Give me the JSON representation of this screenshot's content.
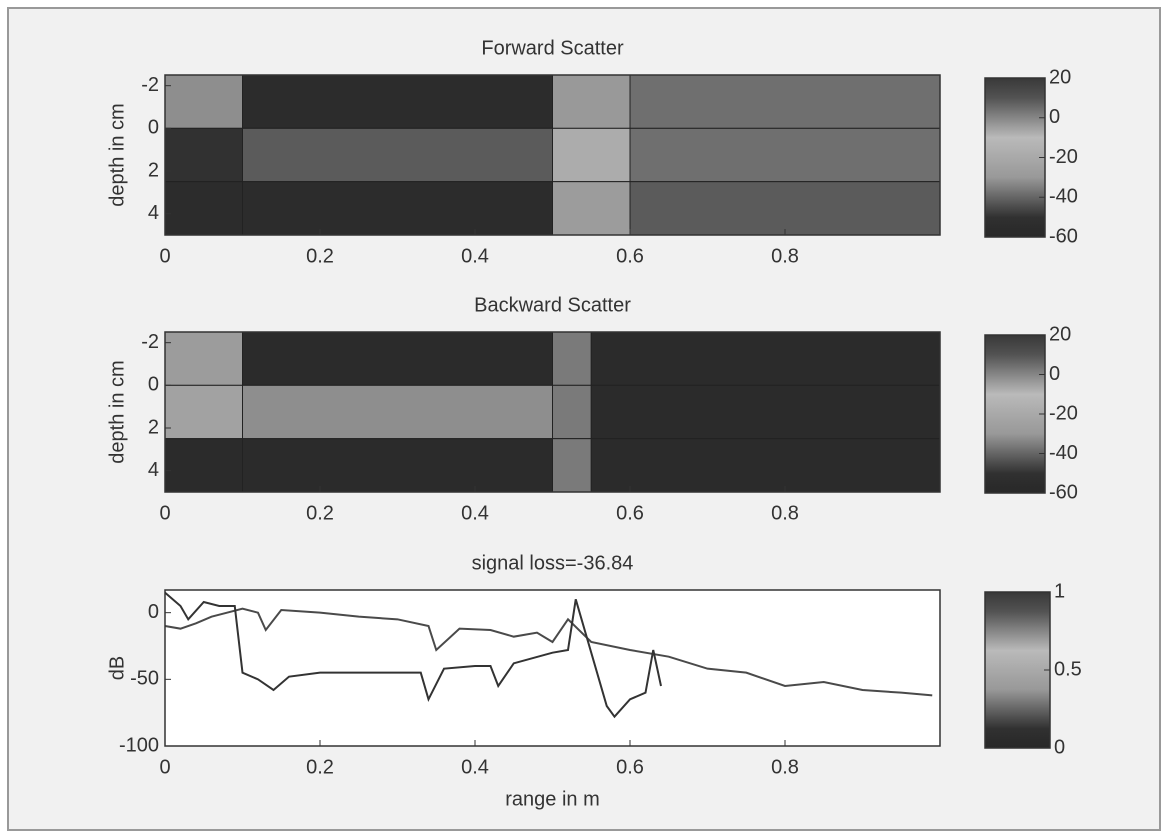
{
  "chart_data": [
    {
      "type": "heatmap",
      "title": "Forward Scatter",
      "y_label": "depth in cm",
      "x_edges": [
        0,
        0.1,
        0.5,
        0.6,
        1
      ],
      "y_edges": [
        -2.5,
        0,
        2.5,
        5
      ],
      "values": [
        [
          -32,
          -55,
          -30,
          -38
        ],
        [
          -50,
          -42,
          -18,
          -38
        ],
        [
          -55,
          -55,
          -28,
          -42
        ]
      ],
      "xlim": [
        0,
        1
      ],
      "ylim": [
        -2.5,
        5
      ],
      "xticks": [
        0,
        0.2,
        0.4,
        0.6,
        0.8
      ],
      "yticks": [
        -2,
        0,
        2,
        4
      ],
      "colorbar": {
        "lim": [
          -60,
          20
        ],
        "ticks": [
          20,
          0,
          -20,
          -40,
          -60
        ]
      }
    },
    {
      "type": "heatmap",
      "title": "Backward Scatter",
      "y_label": "depth in cm",
      "x_edges": [
        0,
        0.1,
        0.5,
        0.55,
        1
      ],
      "y_edges": [
        -2.5,
        0,
        2.5,
        5
      ],
      "values": [
        [
          -28,
          -56,
          -36,
          -56
        ],
        [
          -24,
          -32,
          -36,
          -56
        ],
        [
          -56,
          -56,
          -36,
          -56
        ]
      ],
      "xlim": [
        0,
        1
      ],
      "ylim": [
        -2.5,
        5
      ],
      "xticks": [
        0,
        0.2,
        0.4,
        0.6,
        0.8
      ],
      "yticks": [
        -2,
        0,
        2,
        4
      ],
      "colorbar": {
        "lim": [
          -60,
          20
        ],
        "ticks": [
          20,
          0,
          -20,
          -40,
          -60
        ]
      }
    },
    {
      "type": "line",
      "title": "signal loss=-36.84",
      "x_label": "range in m",
      "y_label": "dB",
      "series": [
        {
          "color": "#4a4a4a",
          "x": [
            0,
            0.02,
            0.04,
            0.06,
            0.08,
            0.1,
            0.12,
            0.13,
            0.15,
            0.2,
            0.25,
            0.3,
            0.34,
            0.35,
            0.38,
            0.42,
            0.45,
            0.48,
            0.5,
            0.52,
            0.55,
            0.6,
            0.65,
            0.7,
            0.75,
            0.8,
            0.85,
            0.9,
            0.95,
            0.99
          ],
          "values": [
            -10,
            -12,
            -8,
            -3,
            0,
            3,
            0,
            -13,
            2,
            0,
            -3,
            -5,
            -10,
            -28,
            -12,
            -13,
            -18,
            -15,
            -22,
            -5,
            -22,
            -28,
            -33,
            -42,
            -45,
            -55,
            -52,
            -58,
            -60,
            -62
          ]
        },
        {
          "color": "#333333",
          "x": [
            0,
            0.02,
            0.03,
            0.05,
            0.07,
            0.09,
            0.1,
            0.12,
            0.14,
            0.16,
            0.2,
            0.25,
            0.3,
            0.33,
            0.34,
            0.36,
            0.4,
            0.42,
            0.43,
            0.45,
            0.5,
            0.52,
            0.53,
            0.55,
            0.57,
            0.58,
            0.6,
            0.62,
            0.63,
            0.64
          ],
          "values": [
            15,
            5,
            -5,
            8,
            5,
            5,
            -45,
            -50,
            -58,
            -48,
            -45,
            -45,
            -45,
            -45,
            -65,
            -42,
            -40,
            -40,
            -55,
            -38,
            -30,
            -28,
            10,
            -30,
            -70,
            -78,
            -65,
            -60,
            -28,
            -55
          ]
        }
      ],
      "xlim": [
        0,
        1
      ],
      "ylim": [
        -100,
        17
      ],
      "xticks": [
        0,
        0.2,
        0.4,
        0.6,
        0.8
      ],
      "yticks": [
        -100,
        -50,
        0
      ],
      "colorbar": {
        "lim": [
          0,
          1
        ],
        "ticks": [
          1,
          0.5,
          0
        ]
      }
    }
  ]
}
